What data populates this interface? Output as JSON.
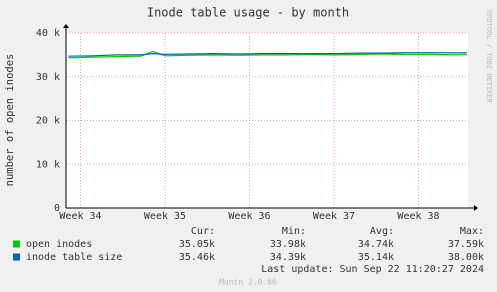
{
  "chart_data": {
    "type": "line",
    "title": "Inode table usage - by month",
    "y_label": "number of open inodes",
    "side_text": "RRDTOOL / TOBI OETIKER",
    "x": [
      -1,
      1,
      3,
      5,
      6,
      7,
      9,
      11,
      13,
      15,
      17,
      19,
      21,
      23,
      25,
      27,
      29,
      31,
      32
    ],
    "xlim": [
      -1.2,
      32.1
    ],
    "xticks": [
      {
        "value": 0,
        "label": "Week 34"
      },
      {
        "value": 7,
        "label": "Week 35"
      },
      {
        "value": 14,
        "label": "Week 36"
      },
      {
        "value": 21,
        "label": "Week 37"
      },
      {
        "value": 28,
        "label": "Week 38"
      }
    ],
    "ylim": [
      0,
      40000
    ],
    "yticks": [
      {
        "value": 0,
        "label": "0"
      },
      {
        "value": 10000,
        "label": "10 k"
      },
      {
        "value": 20000,
        "label": "20 k"
      },
      {
        "value": 30000,
        "label": "30 k"
      },
      {
        "value": 40000,
        "label": "40 k"
      }
    ],
    "grid": true,
    "series": [
      {
        "name": "open inodes",
        "color": "#00cc00",
        "values": [
          34300,
          34500,
          34600,
          34700,
          35800,
          34800,
          34900,
          35000,
          34900,
          35000,
          35000,
          35100,
          35000,
          35100,
          35200,
          35100,
          35100,
          35000,
          35050
        ],
        "stats": [
          "35.05k",
          "33.98k",
          "34.74k",
          "37.59k"
        ]
      },
      {
        "name": "inode table size",
        "color": "#0066b3",
        "values": [
          34700,
          34800,
          35000,
          35000,
          35300,
          35100,
          35200,
          35300,
          35200,
          35300,
          35300,
          35300,
          35300,
          35400,
          35400,
          35500,
          35500,
          35450,
          35460
        ],
        "stats": [
          "35.46k",
          "34.39k",
          "35.14k",
          "38.00k"
        ]
      }
    ],
    "stat_headers": [
      "Cur:",
      "Min:",
      "Avg:",
      "Max:"
    ],
    "last_update": "Last update: Sun Sep 22 11:20:27 2024",
    "footer": "Munin 2.0.66"
  }
}
